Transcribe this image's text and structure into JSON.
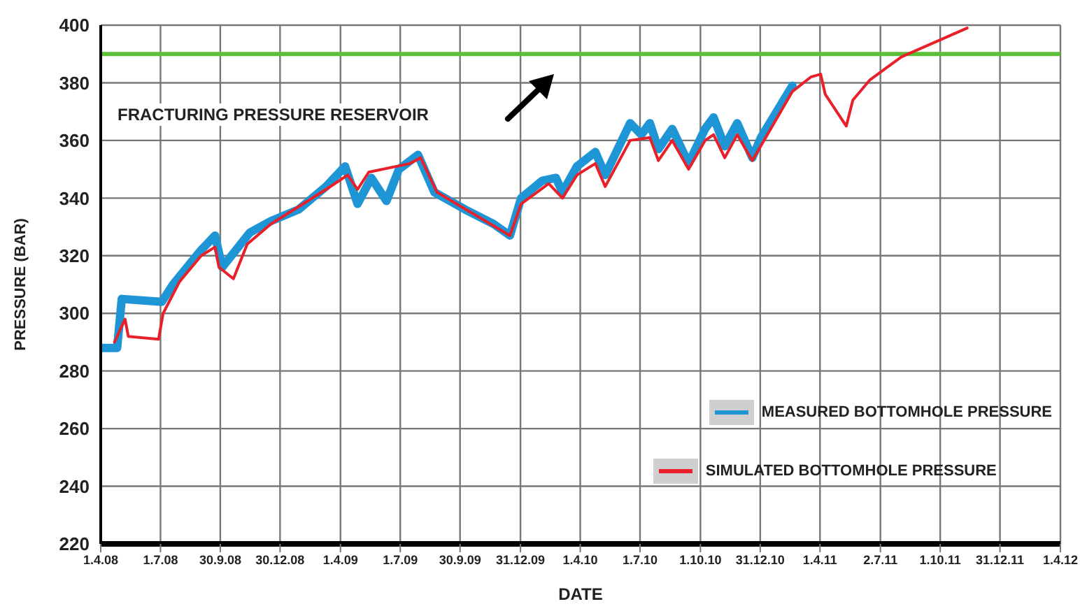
{
  "chart_data": {
    "type": "line",
    "xlabel": "DATE",
    "ylabel": "PRESSURE (BAR)",
    "xlim": [
      "2008-04-01",
      "2012-04-01"
    ],
    "xticks": [
      {
        "value": "2008-04-01",
        "label": "1.4.08"
      },
      {
        "value": "2008-07-01",
        "label": "1.7.08"
      },
      {
        "value": "2008-09-30",
        "label": "30.9.08"
      },
      {
        "value": "2008-12-30",
        "label": "30.12.08"
      },
      {
        "value": "2009-04-01",
        "label": "1.4.09"
      },
      {
        "value": "2009-07-01",
        "label": "1.7.09"
      },
      {
        "value": "2009-09-30",
        "label": "30.9.09"
      },
      {
        "value": "2009-12-31",
        "label": "31.12.09"
      },
      {
        "value": "2010-04-01",
        "label": "1.4.10"
      },
      {
        "value": "2010-07-01",
        "label": "1.7.10"
      },
      {
        "value": "2010-10-01",
        "label": "1.10.10"
      },
      {
        "value": "2010-12-31",
        "label": "31.12.10"
      },
      {
        "value": "2011-04-01",
        "label": "1.4.11"
      },
      {
        "value": "2011-07-02",
        "label": "2.7.11"
      },
      {
        "value": "2011-10-01",
        "label": "1.10.11"
      },
      {
        "value": "2011-12-31",
        "label": "31.12.11"
      },
      {
        "value": "2012-04-01",
        "label": "1.4.12"
      }
    ],
    "ylim": [
      220,
      400
    ],
    "yticks": [
      220,
      240,
      260,
      280,
      300,
      320,
      340,
      360,
      380,
      400
    ],
    "grid": true,
    "legend": "bottom right",
    "line_style": "solid",
    "marker": "none",
    "ref_lines": [
      {
        "axis": "y",
        "value": 390,
        "color": "#5cbf3a"
      }
    ],
    "annotations": [
      "FRACTURING PRESSURE RESERVOIR"
    ],
    "series": [
      {
        "name": "MEASURED BOTTOMHOLE PRESSURE",
        "color": "#1e96d6",
        "x": [
          "2008-04-01",
          "2008-04-26",
          "2008-05-03",
          "2008-07-03",
          "2008-07-20",
          "2008-09-01",
          "2008-09-22",
          "2008-10-03",
          "2008-10-24",
          "2008-11-14",
          "2008-12-16",
          "2009-01-27",
          "2009-03-10",
          "2009-04-08",
          "2009-04-27",
          "2009-05-18",
          "2009-06-10",
          "2009-06-29",
          "2009-07-28",
          "2009-08-22",
          "2009-10-08",
          "2009-11-20",
          "2009-12-15",
          "2010-01-01",
          "2010-02-02",
          "2010-02-23",
          "2010-03-05",
          "2010-03-27",
          "2010-04-24",
          "2010-05-09",
          "2010-06-16",
          "2010-07-03",
          "2010-07-16",
          "2010-07-29",
          "2010-08-19",
          "2010-09-13",
          "2010-10-08",
          "2010-10-21",
          "2010-11-07",
          "2010-11-26",
          "2010-12-19",
          "2011-01-01",
          "2011-02-18"
        ],
        "values": [
          288,
          288,
          305,
          304,
          310,
          322,
          327,
          316,
          322,
          328,
          332,
          336,
          344,
          351,
          338,
          347,
          339,
          350,
          355,
          342,
          336,
          331,
          327,
          340,
          346,
          347,
          342,
          351,
          356,
          348,
          366,
          362,
          366,
          357,
          364,
          352,
          364,
          368,
          358,
          366,
          354,
          361,
          379
        ]
      },
      {
        "name": "SIMULATED BOTTOMHOLE PRESSURE",
        "color": "#e8202a",
        "x": [
          "2008-04-22",
          "2008-05-08",
          "2008-05-13",
          "2008-06-28",
          "2008-07-05",
          "2008-07-30",
          "2008-09-01",
          "2008-09-22",
          "2008-09-28",
          "2008-10-20",
          "2008-11-10",
          "2008-12-16",
          "2009-03-10",
          "2009-04-12",
          "2009-04-27",
          "2009-05-14",
          "2009-07-16",
          "2009-08-01",
          "2009-08-26",
          "2009-12-15",
          "2010-01-01",
          "2010-02-12",
          "2010-03-05",
          "2010-03-27",
          "2010-04-24",
          "2010-05-09",
          "2010-06-16",
          "2010-07-16",
          "2010-07-29",
          "2010-08-19",
          "2010-09-13",
          "2010-10-08",
          "2010-10-21",
          "2010-11-07",
          "2010-11-26",
          "2010-12-19",
          "2011-02-18",
          "2011-03-18",
          "2011-04-02",
          "2011-04-09",
          "2011-05-11",
          "2011-05-21",
          "2011-06-16",
          "2011-08-03",
          "2011-11-11"
        ],
        "values": [
          290,
          298,
          292,
          291,
          300,
          311,
          320,
          323,
          316,
          312,
          324,
          331,
          343,
          348,
          343,
          349,
          352,
          354,
          342,
          327,
          338,
          345,
          340,
          348,
          352,
          344,
          360,
          361,
          353,
          360,
          350,
          360,
          362,
          354,
          362,
          353,
          377,
          382,
          383,
          376,
          365,
          374,
          381,
          389,
          399
        ]
      }
    ]
  }
}
